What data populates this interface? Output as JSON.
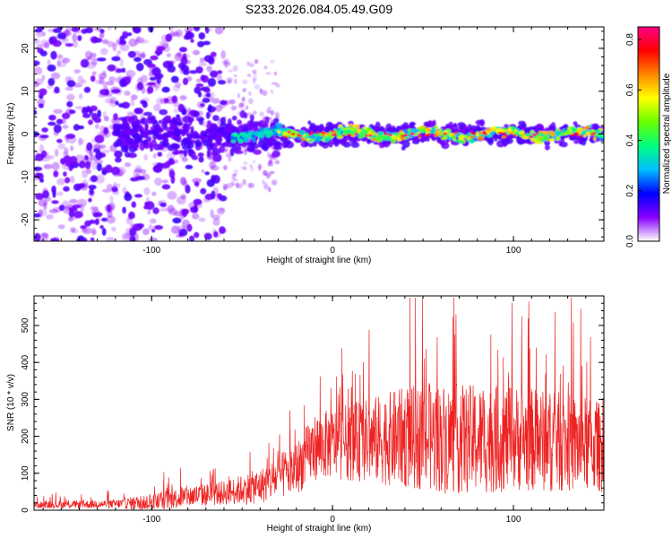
{
  "title": "S233.2026.084.05.49.G09",
  "chart_data": [
    {
      "type": "heatmap",
      "xlabel": "Height of straight line (km)",
      "ylabel": "Frequency (Hz)",
      "xlim": [
        -165,
        150
      ],
      "ylim": [
        -25,
        25
      ],
      "x_ticks": [
        -100,
        0,
        100
      ],
      "x_tick_labels": [
        "-100",
        "0",
        "100"
      ],
      "y_ticks": [
        -20,
        -10,
        0,
        10,
        20
      ],
      "y_tick_labels": [
        "-20",
        "-10",
        "0",
        "10",
        "20"
      ],
      "colorbar": {
        "label": "Normalized spectral amplitude",
        "range": [
          0,
          0.85
        ],
        "ticks": [
          0.0,
          0.2,
          0.4,
          0.6,
          0.8
        ],
        "tick_labels": [
          "0.0",
          "0.2",
          "0.4",
          "0.6",
          "0.8"
        ],
        "colors": [
          "#ffffff",
          "#8800ff",
          "#0000ff",
          "#00bfff",
          "#00ff7f",
          "#66ff00",
          "#ffff00",
          "#ff8800",
          "#ff0000",
          "#ff0088"
        ]
      },
      "signal_band": {
        "center_freq_hz": 0,
        "noisy_region_km": [
          -165,
          -60
        ],
        "transition_region_km": [
          -60,
          -30
        ],
        "clean_region_km": [
          -30,
          150
        ]
      }
    },
    {
      "type": "line",
      "xlabel": "Height of straight line (km)",
      "ylabel": "SNR (10 * v/v)",
      "xlim": [
        -165,
        150
      ],
      "ylim": [
        0,
        580
      ],
      "x_ticks": [
        -100,
        0,
        100
      ],
      "x_tick_labels": [
        "-100",
        "0",
        "100"
      ],
      "y_ticks": [
        0,
        100,
        200,
        300,
        400,
        500
      ],
      "y_tick_labels": [
        "0",
        "100",
        "200",
        "300",
        "400",
        "500"
      ],
      "color": "#ee2222",
      "envelope": {
        "x": [
          -165,
          -120,
          -100,
          -80,
          -60,
          -40,
          -20,
          -10,
          0,
          20,
          40,
          60,
          80,
          100,
          120,
          140,
          150
        ],
        "base": [
          15,
          18,
          25,
          40,
          50,
          70,
          120,
          180,
          190,
          200,
          210,
          210,
          205,
          210,
          200,
          190,
          180
        ],
        "spread": [
          15,
          20,
          40,
          50,
          55,
          80,
          120,
          150,
          160,
          190,
          230,
          250,
          250,
          240,
          230,
          220,
          200
        ]
      }
    }
  ]
}
